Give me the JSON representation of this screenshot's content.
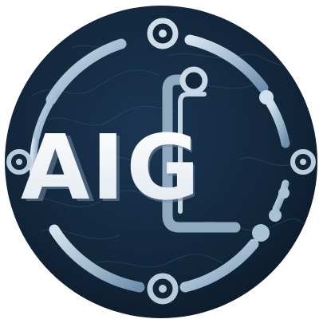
{
  "logo": {
    "text": "AIG",
    "colors": {
      "background": "#ffffff",
      "disc": "#12263a",
      "disc_edge": "#0b1a2a",
      "map_lines": "#4a6a88",
      "ring": "#a9c2d6",
      "ring_light": "#d4e3ee",
      "letters": "#f2f5f8",
      "letters_shadow": "#6f8aa3",
      "node_fill": "#12263a"
    }
  }
}
